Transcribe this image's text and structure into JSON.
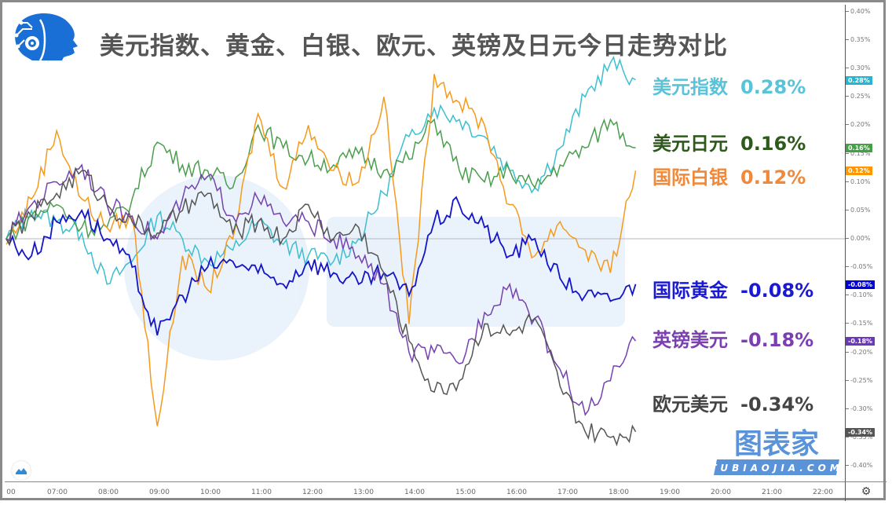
{
  "title": "美元指数、黄金、白银、欧元、英镑及日元今日走势对比",
  "watermark": {
    "cn": "图表家",
    "en": "TUBIAOJIA.COM"
  },
  "colors": {
    "usd_index": "#3cbfcf",
    "usdjpy": "#4a9e4e",
    "silver": "#f59a1c",
    "gold": "#1414c8",
    "gbpusd": "#7442b0",
    "eurusd": "#555555",
    "title": "#555555",
    "logo_blue": "#1a6fd6"
  },
  "legend": [
    {
      "label": "美元指数",
      "value": "0.28%",
      "color": "#5bc3d8"
    },
    {
      "label": "美元日元",
      "value": "0.16%",
      "color": "#2f5a1e"
    },
    {
      "label": "国际白银",
      "value": "0.12%",
      "color": "#f0893a"
    },
    {
      "label": "国际黄金",
      "value": "-0.08%",
      "color": "#1a1ad4"
    },
    {
      "label": "英镑美元",
      "value": "-0.18%",
      "color": "#7a3fb0"
    },
    {
      "label": "欧元美元",
      "value": "-0.34%",
      "color": "#444444"
    }
  ],
  "y_axis": {
    "ticks": [
      "0.40%",
      "0.35%",
      "0.30%",
      "0.25%",
      "0.20%",
      "0.15%",
      "0.10%",
      "0.05%",
      "0.00%",
      "-0.05%",
      "-0.10%",
      "-0.15%",
      "-0.20%",
      "-0.25%",
      "-0.30%",
      "-0.35%",
      "-0.40%"
    ],
    "badges": [
      {
        "text": "0.28%",
        "color": "#26b5d0"
      },
      {
        "text": "0.16%",
        "color": "#43a047"
      },
      {
        "text": "0.12%",
        "color": "#ff9800"
      },
      {
        "text": "-0.08%",
        "color": "#0000dd"
      },
      {
        "text": "-0.18%",
        "color": "#6a38b8"
      },
      {
        "text": "-0.34%",
        "color": "#555555"
      }
    ]
  },
  "x_axis": {
    "ticks": [
      "00",
      "07:00",
      "08:00",
      "09:00",
      "10:00",
      "11:00",
      "12:00",
      "13:00",
      "14:00",
      "15:00",
      "16:00",
      "17:00",
      "18:00",
      "19:00",
      "20:00",
      "21:00",
      "22:00"
    ]
  },
  "chart_data": {
    "type": "line",
    "title": "美元指数、黄金、白银、欧元、英镑及日元今日走势对比",
    "xlabel": "",
    "ylabel": "",
    "ylim": [
      -0.4,
      0.4
    ],
    "x": [
      "06:00",
      "06:30",
      "07:00",
      "07:30",
      "08:00",
      "08:30",
      "09:00",
      "09:30",
      "10:00",
      "10:30",
      "11:00",
      "11:30",
      "12:00",
      "12:30",
      "13:00",
      "13:30",
      "14:00",
      "14:30",
      "15:00",
      "15:30",
      "16:00",
      "16:30",
      "17:00",
      "17:30",
      "18:00",
      "18:20"
    ],
    "series": [
      {
        "name": "美元指数",
        "final": "0.28%",
        "values": [
          0.0,
          0.05,
          0.03,
          0.01,
          -0.08,
          -0.04,
          0.04,
          0.0,
          -0.04,
          -0.02,
          0.03,
          -0.01,
          -0.03,
          -0.04,
          0.0,
          0.08,
          0.18,
          0.23,
          0.21,
          0.18,
          0.12,
          0.09,
          0.16,
          0.25,
          0.31,
          0.28
        ]
      },
      {
        "name": "美元日元",
        "final": "0.16%",
        "values": [
          0.0,
          0.04,
          0.06,
          0.02,
          0.02,
          0.07,
          0.17,
          0.13,
          0.12,
          0.09,
          0.2,
          0.16,
          0.14,
          0.13,
          0.15,
          0.12,
          0.14,
          0.21,
          0.12,
          0.1,
          0.12,
          0.09,
          0.13,
          0.16,
          0.21,
          0.16
        ]
      },
      {
        "name": "国际白银",
        "final": "0.12%",
        "values": [
          -0.01,
          0.07,
          0.19,
          0.07,
          0.02,
          0.04,
          -0.33,
          -0.03,
          -0.09,
          0.0,
          0.22,
          0.09,
          0.2,
          0.12,
          0.1,
          0.25,
          -0.15,
          0.29,
          0.24,
          0.2,
          0.06,
          -0.03,
          0.03,
          -0.02,
          -0.06,
          0.12
        ]
      },
      {
        "name": "国际黄金",
        "final": "-0.08%",
        "values": [
          0.0,
          -0.03,
          0.03,
          0.05,
          0.0,
          -0.05,
          -0.17,
          -0.1,
          -0.05,
          -0.04,
          -0.06,
          -0.08,
          -0.04,
          -0.06,
          -0.08,
          -0.06,
          -0.1,
          0.03,
          0.06,
          0.02,
          -0.03,
          0.0,
          -0.07,
          -0.1,
          -0.11,
          -0.08
        ]
      },
      {
        "name": "英镑美元",
        "final": "-0.18%",
        "values": [
          0.0,
          0.06,
          0.1,
          0.13,
          0.06,
          0.04,
          0.0,
          0.07,
          0.11,
          0.04,
          0.07,
          0.03,
          0.03,
          0.0,
          -0.03,
          -0.08,
          -0.2,
          -0.2,
          -0.22,
          -0.13,
          -0.08,
          -0.14,
          -0.23,
          -0.31,
          -0.25,
          -0.18
        ]
      },
      {
        "name": "欧元美元",
        "final": "-0.34%",
        "values": [
          0.0,
          0.04,
          0.08,
          0.12,
          0.06,
          0.03,
          0.01,
          0.05,
          0.08,
          0.01,
          0.03,
          0.0,
          0.06,
          0.0,
          0.02,
          -0.06,
          -0.18,
          -0.27,
          -0.25,
          -0.15,
          -0.17,
          -0.14,
          -0.26,
          -0.34,
          -0.35,
          -0.34
        ]
      }
    ]
  }
}
